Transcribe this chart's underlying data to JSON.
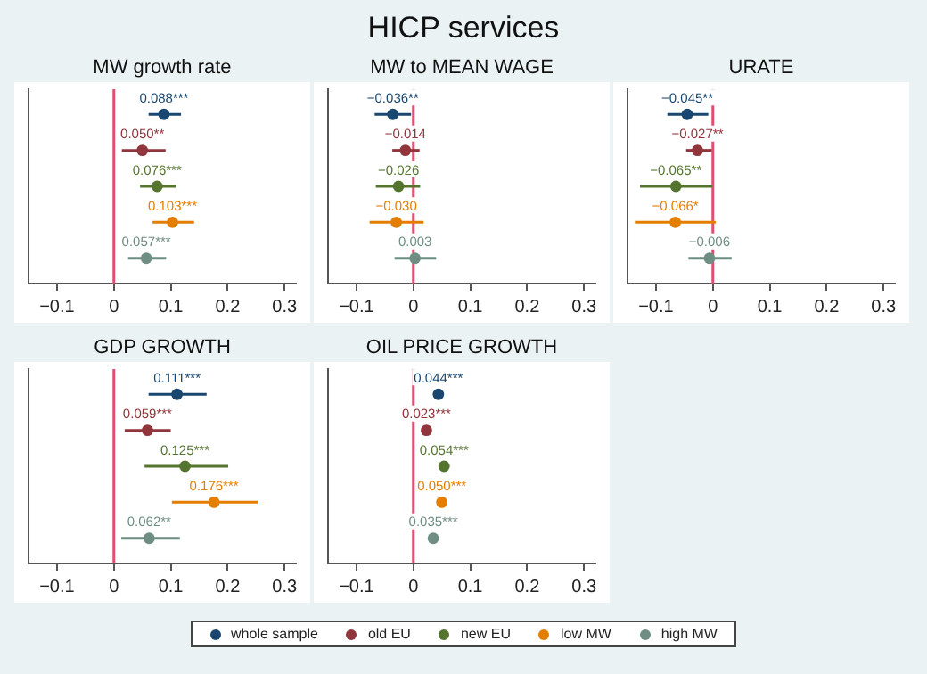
{
  "chart_data": [
    {
      "type": "scatter",
      "title": "MW growth rate",
      "orientation": "horizontal",
      "categories": [
        null,
        null,
        null,
        null,
        null
      ],
      "xlim": [
        -0.15,
        0.32
      ],
      "xticks": [
        -0.1,
        0,
        0.1,
        0.2,
        0.3
      ],
      "grid": false,
      "legend": "bottom",
      "marker": "circle",
      "ref_lines": [
        {
          "axis": "x",
          "value": 0,
          "color": "#e0506e"
        }
      ],
      "series": [
        {
          "name": "whole sample",
          "color": "#1a476f",
          "values": [
            0.088,
            null,
            null,
            null,
            null
          ],
          "errors": [
            [
              0.061,
              0.118
            ],
            null,
            null,
            null,
            null
          ],
          "value_labels": [
            "0.088***",
            null,
            null,
            null,
            null
          ]
        },
        {
          "name": "old EU",
          "color": "#90353b",
          "values": [
            null,
            0.05,
            null,
            null,
            null
          ],
          "errors": [
            null,
            [
              0.014,
              0.091
            ],
            null,
            null,
            null
          ],
          "value_labels": [
            null,
            "0.050**",
            null,
            null,
            null
          ]
        },
        {
          "name": "new EU",
          "color": "#55752f",
          "values": [
            null,
            null,
            0.076,
            null,
            null
          ],
          "errors": [
            null,
            null,
            [
              0.046,
              0.109
            ],
            null,
            null
          ],
          "value_labels": [
            null,
            null,
            "0.076***",
            null,
            null
          ]
        },
        {
          "name": "low MW",
          "color": "#e37e00",
          "values": [
            null,
            null,
            null,
            0.103,
            null
          ],
          "errors": [
            null,
            null,
            null,
            [
              0.068,
              0.141
            ],
            null
          ],
          "value_labels": [
            null,
            null,
            null,
            "0.103***",
            null
          ]
        },
        {
          "name": "high MW",
          "color": "#6e8e84",
          "values": [
            null,
            null,
            null,
            null,
            0.057
          ],
          "errors": [
            null,
            null,
            null,
            null,
            [
              0.025,
              0.092
            ]
          ],
          "value_labels": [
            null,
            null,
            null,
            null,
            "0.057***"
          ]
        }
      ]
    },
    {
      "type": "scatter",
      "title": "HICP services",
      "subtitle": "MW to MEAN WAGE",
      "orientation": "horizontal",
      "categories": [
        null,
        null,
        null,
        null,
        null
      ],
      "xlim": [
        -0.15,
        0.32
      ],
      "xticks": [
        -0.1,
        0,
        0.1,
        0.2,
        0.3
      ],
      "grid": false,
      "marker": "circle",
      "ref_lines": [
        {
          "axis": "x",
          "value": 0,
          "color": "#e0506e"
        }
      ],
      "series": [
        {
          "color": "#1a476f",
          "values": [
            -0.036,
            null,
            null,
            null,
            null
          ],
          "errors": [
            [
              -0.068,
              -0.004
            ],
            null,
            null,
            null,
            null
          ],
          "value_labels": [
            "−0.036**",
            null,
            null,
            null,
            null
          ]
        },
        {
          "color": "#90353b",
          "values": [
            null,
            -0.014,
            null,
            null,
            null
          ],
          "errors": [
            null,
            [
              -0.037,
              0.011
            ],
            null,
            null,
            null
          ],
          "value_labels": [
            null,
            "−0.014",
            null,
            null,
            null
          ]
        },
        {
          "color": "#55752f",
          "values": [
            null,
            null,
            -0.026,
            null,
            null
          ],
          "errors": [
            null,
            null,
            [
              -0.066,
              0.012
            ],
            null,
            null
          ],
          "value_labels": [
            null,
            null,
            "−0.026",
            null,
            null
          ]
        },
        {
          "color": "#e37e00",
          "values": [
            null,
            null,
            null,
            -0.03,
            null
          ],
          "errors": [
            null,
            null,
            null,
            [
              -0.077,
              0.018
            ],
            null
          ],
          "value_labels": [
            null,
            null,
            null,
            "−0.030",
            null
          ]
        },
        {
          "color": "#6e8e84",
          "values": [
            null,
            null,
            null,
            null,
            0.003
          ],
          "errors": [
            null,
            null,
            null,
            null,
            [
              -0.033,
              0.04
            ]
          ],
          "value_labels": [
            null,
            null,
            null,
            null,
            "0.003"
          ]
        }
      ]
    },
    {
      "type": "scatter",
      "title": "URATE",
      "orientation": "horizontal",
      "categories": [
        null,
        null,
        null,
        null,
        null
      ],
      "xlim": [
        -0.15,
        0.32
      ],
      "xticks": [
        -0.1,
        0,
        0.1,
        0.2,
        0.3
      ],
      "grid": false,
      "marker": "circle",
      "ref_lines": [
        {
          "axis": "x",
          "value": 0,
          "color": "#e0506e"
        }
      ],
      "series": [
        {
          "color": "#1a476f",
          "values": [
            -0.045,
            null,
            null,
            null,
            null
          ],
          "errors": [
            [
              -0.08,
              -0.008
            ],
            null,
            null,
            null,
            null
          ],
          "value_labels": [
            "−0.045**",
            null,
            null,
            null,
            null
          ]
        },
        {
          "color": "#90353b",
          "values": [
            null,
            -0.027,
            null,
            null,
            null
          ],
          "errors": [
            null,
            [
              -0.047,
              -0.002
            ],
            null,
            null,
            null
          ],
          "value_labels": [
            null,
            "−0.027**",
            null,
            null,
            null
          ]
        },
        {
          "color": "#55752f",
          "values": [
            null,
            null,
            -0.065,
            null,
            null
          ],
          "errors": [
            null,
            null,
            [
              -0.128,
              -0.001
            ],
            null,
            null
          ],
          "value_labels": [
            null,
            null,
            "−0.065**",
            null,
            null
          ]
        },
        {
          "color": "#e37e00",
          "values": [
            null,
            null,
            null,
            -0.066,
            null
          ],
          "errors": [
            null,
            null,
            null,
            [
              -0.137,
              0.005
            ],
            null
          ],
          "value_labels": [
            null,
            null,
            null,
            "−0.066*",
            null
          ]
        },
        {
          "color": "#6e8e84",
          "values": [
            null,
            null,
            null,
            null,
            -0.006
          ],
          "errors": [
            null,
            null,
            null,
            null,
            [
              -0.043,
              0.033
            ]
          ],
          "value_labels": [
            null,
            null,
            null,
            null,
            "−0.006"
          ]
        }
      ]
    },
    {
      "type": "scatter",
      "title": "GDP GROWTH",
      "orientation": "horizontal",
      "categories": [
        null,
        null,
        null,
        null,
        null
      ],
      "xlim": [
        -0.15,
        0.32
      ],
      "xticks": [
        -0.1,
        0,
        0.1,
        0.2,
        0.3
      ],
      "grid": false,
      "marker": "circle",
      "ref_lines": [
        {
          "axis": "x",
          "value": 0,
          "color": "#e0506e"
        }
      ],
      "series": [
        {
          "color": "#1a476f",
          "values": [
            0.111,
            null,
            null,
            null,
            null
          ],
          "errors": [
            [
              0.061,
              0.163
            ],
            null,
            null,
            null,
            null
          ],
          "value_labels": [
            "0.111***",
            null,
            null,
            null,
            null
          ]
        },
        {
          "color": "#90353b",
          "values": [
            null,
            0.059,
            null,
            null,
            null
          ],
          "errors": [
            null,
            [
              0.019,
              0.1
            ],
            null,
            null,
            null
          ],
          "value_labels": [
            null,
            "0.059***",
            null,
            null,
            null
          ]
        },
        {
          "color": "#55752f",
          "values": [
            null,
            null,
            0.125,
            null,
            null
          ],
          "errors": [
            null,
            null,
            [
              0.054,
              0.201
            ],
            null,
            null
          ],
          "value_labels": [
            null,
            null,
            "0.125***",
            null,
            null
          ]
        },
        {
          "color": "#e37e00",
          "values": [
            null,
            null,
            null,
            0.176,
            null
          ],
          "errors": [
            null,
            null,
            null,
            [
              0.102,
              0.253
            ],
            null
          ],
          "value_labels": [
            null,
            null,
            null,
            "0.176***",
            null
          ]
        },
        {
          "color": "#6e8e84",
          "values": [
            null,
            null,
            null,
            null,
            0.062
          ],
          "errors": [
            null,
            null,
            null,
            null,
            [
              0.013,
              0.116
            ]
          ],
          "value_labels": [
            null,
            null,
            null,
            null,
            "0.062**"
          ]
        }
      ]
    },
    {
      "type": "scatter",
      "title": "OIL PRICE GROWTH",
      "orientation": "horizontal",
      "categories": [
        null,
        null,
        null,
        null,
        null
      ],
      "xlim": [
        -0.15,
        0.32
      ],
      "xticks": [
        -0.1,
        0,
        0.1,
        0.2,
        0.3
      ],
      "grid": false,
      "marker": "circle",
      "ref_lines": [
        {
          "axis": "x",
          "value": 0,
          "color": "#e0506e"
        }
      ],
      "series": [
        {
          "color": "#1a476f",
          "values": [
            0.044,
            null,
            null,
            null,
            null
          ],
          "value_labels": [
            "0.044***",
            null,
            null,
            null,
            null
          ]
        },
        {
          "color": "#90353b",
          "values": [
            null,
            0.023,
            null,
            null,
            null
          ],
          "value_labels": [
            null,
            "0.023***",
            null,
            null,
            null
          ]
        },
        {
          "color": "#55752f",
          "values": [
            null,
            null,
            0.054,
            null,
            null
          ],
          "value_labels": [
            null,
            null,
            "0.054***",
            null,
            null
          ]
        },
        {
          "color": "#e37e00",
          "values": [
            null,
            null,
            null,
            0.05,
            null
          ],
          "value_labels": [
            null,
            null,
            null,
            "0.050***",
            null
          ]
        },
        {
          "color": "#6e8e84",
          "values": [
            null,
            null,
            null,
            null,
            0.035
          ],
          "value_labels": [
            null,
            null,
            null,
            null,
            "0.035***"
          ]
        }
      ]
    }
  ]
}
